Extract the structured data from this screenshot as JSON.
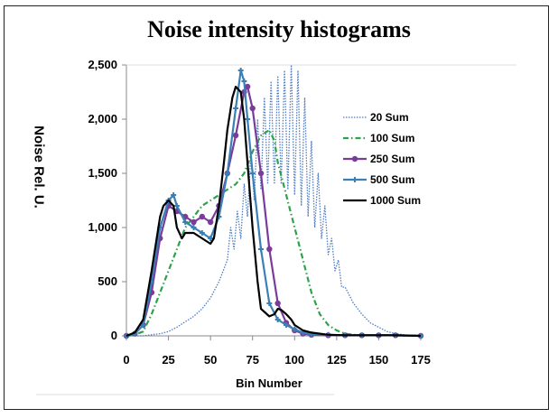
{
  "chart_data": {
    "type": "line",
    "title": "Noise intensity histograms",
    "xlabel": "Bin Number",
    "ylabel": "Noise Rel. U.",
    "xlim": [
      0,
      175
    ],
    "ylim": [
      0,
      2500
    ],
    "xticks": [
      "0",
      "25",
      "50",
      "75",
      "100",
      "125",
      "150",
      "175"
    ],
    "yticks": [
      "0",
      "500",
      "1,000",
      "1,500",
      "2,000",
      "2,500"
    ],
    "grid": false,
    "legend_position": "right",
    "series": [
      {
        "name": "20 Sum",
        "color": "#4f7bc4",
        "dash": "dotted",
        "x": [
          0,
          10,
          20,
          25,
          30,
          35,
          40,
          45,
          50,
          55,
          60,
          62,
          64,
          66,
          68,
          70,
          72,
          74,
          76,
          78,
          80,
          82,
          84,
          86,
          88,
          90,
          92,
          94,
          96,
          98,
          100,
          102,
          104,
          106,
          108,
          110,
          112,
          114,
          116,
          118,
          120,
          122,
          124,
          126,
          128,
          130,
          135,
          140,
          145,
          150,
          155,
          160,
          165,
          170,
          175
        ],
        "y": [
          0,
          0,
          20,
          40,
          80,
          130,
          180,
          250,
          350,
          500,
          700,
          1000,
          800,
          1150,
          900,
          1400,
          1100,
          1700,
          1250,
          2000,
          1350,
          2200,
          1400,
          2350,
          1400,
          2400,
          1400,
          2450,
          1350,
          2500,
          1300,
          2450,
          1200,
          2200,
          1100,
          1800,
          1000,
          1500,
          900,
          1200,
          750,
          900,
          600,
          700,
          450,
          450,
          300,
          200,
          120,
          80,
          40,
          20,
          10,
          5,
          0
        ]
      },
      {
        "name": "100 Sum",
        "color": "#2ca24a",
        "dash": "dash-dot",
        "x": [
          0,
          5,
          10,
          15,
          20,
          25,
          30,
          35,
          40,
          45,
          50,
          55,
          60,
          65,
          70,
          75,
          80,
          85,
          88,
          90,
          95,
          100,
          105,
          110,
          115,
          120,
          125,
          130,
          135,
          140,
          150,
          160,
          175
        ],
        "y": [
          0,
          10,
          40,
          200,
          400,
          600,
          800,
          1000,
          1100,
          1200,
          1250,
          1300,
          1350,
          1400,
          1500,
          1700,
          1850,
          1900,
          1800,
          1600,
          1300,
          1000,
          700,
          400,
          200,
          100,
          50,
          20,
          10,
          5,
          5,
          5,
          0
        ]
      },
      {
        "name": "250 Sum",
        "color": "#7a3c9a",
        "dash": "solid",
        "marker": "circle",
        "x": [
          0,
          5,
          10,
          15,
          20,
          25,
          30,
          35,
          40,
          45,
          50,
          55,
          60,
          65,
          70,
          72,
          75,
          80,
          85,
          90,
          95,
          100,
          105,
          110,
          120,
          130,
          140,
          150,
          160,
          175
        ],
        "y": [
          0,
          20,
          100,
          400,
          900,
          1200,
          1150,
          1100,
          1050,
          1100,
          1050,
          1200,
          1500,
          1850,
          2250,
          2300,
          2100,
          1500,
          800,
          300,
          120,
          50,
          20,
          10,
          5,
          5,
          5,
          5,
          5,
          0
        ]
      },
      {
        "name": "500 Sum",
        "color": "#3a7fb5",
        "dash": "solid",
        "marker": "plus",
        "x": [
          0,
          5,
          10,
          15,
          20,
          25,
          28,
          30,
          35,
          40,
          45,
          50,
          55,
          60,
          65,
          68,
          70,
          72,
          75,
          80,
          85,
          90,
          95,
          100,
          105,
          110,
          120,
          130,
          140,
          150,
          160,
          175
        ],
        "y": [
          0,
          20,
          100,
          500,
          1000,
          1250,
          1300,
          1200,
          1050,
          1000,
          950,
          900,
          1100,
          1500,
          2100,
          2450,
          2350,
          2000,
          1500,
          800,
          300,
          150,
          100,
          60,
          30,
          15,
          10,
          5,
          5,
          5,
          5,
          0
        ]
      },
      {
        "name": "1000 Sum",
        "color": "#000000",
        "dash": "solid",
        "x": [
          0,
          5,
          10,
          15,
          20,
          22,
          25,
          28,
          30,
          33,
          35,
          40,
          45,
          50,
          52,
          55,
          58,
          60,
          63,
          65,
          68,
          70,
          72,
          75,
          78,
          80,
          85,
          88,
          90,
          92,
          95,
          98,
          100,
          105,
          110,
          120,
          130,
          140,
          150,
          160,
          175
        ],
        "y": [
          0,
          30,
          150,
          600,
          1100,
          1200,
          1250,
          1200,
          1000,
          900,
          950,
          950,
          900,
          850,
          900,
          1200,
          1600,
          1900,
          2200,
          2300,
          2250,
          2000,
          1600,
          1000,
          500,
          250,
          180,
          200,
          250,
          240,
          200,
          150,
          100,
          50,
          30,
          10,
          5,
          5,
          5,
          5,
          0
        ]
      }
    ]
  }
}
